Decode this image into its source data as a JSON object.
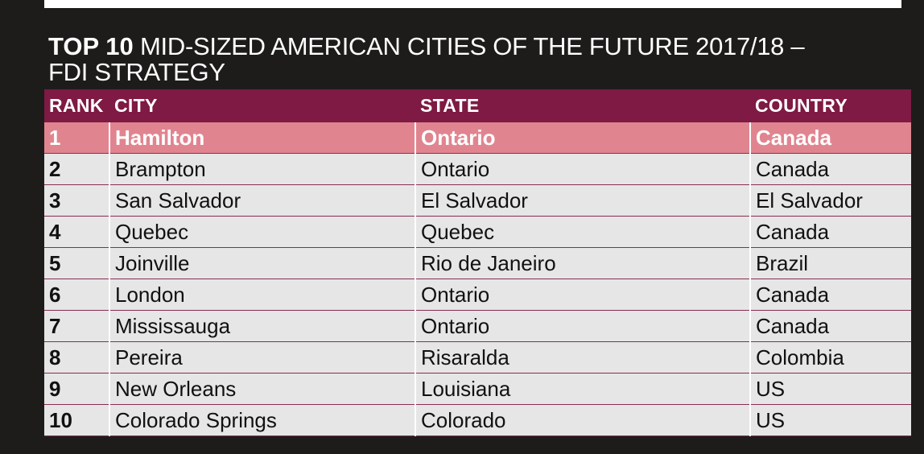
{
  "title": {
    "strong": "TOP 10",
    "rest": " MID-SIZED AMERICAN CITIES OF THE FUTURE 2017/18 –",
    "line2": "FDI STRATEGY"
  },
  "table": {
    "headers": {
      "rank": "RANK",
      "city": "CITY",
      "state": "STATE",
      "country": "COUNTRY"
    },
    "rows": [
      {
        "rank": "1",
        "city": "Hamilton",
        "state": "Ontario",
        "country": "Canada"
      },
      {
        "rank": "2",
        "city": "Brampton",
        "state": "Ontario",
        "country": "Canada"
      },
      {
        "rank": "3",
        "city": "San Salvador",
        "state": "El Salvador",
        "country": "El Salvador"
      },
      {
        "rank": "4",
        "city": "Quebec",
        "state": "Quebec",
        "country": "Canada"
      },
      {
        "rank": "5",
        "city": "Joinville",
        "state": "Rio de Janeiro",
        "country": "Brazil"
      },
      {
        "rank": "6",
        "city": "London",
        "state": "Ontario",
        "country": "Canada"
      },
      {
        "rank": "7",
        "city": "Mississauga",
        "state": "Ontario",
        "country": "Canada"
      },
      {
        "rank": "8",
        "city": "Pereira",
        "state": "Risaralda",
        "country": "Colombia"
      },
      {
        "rank": "9",
        "city": "New Orleans",
        "state": "Louisiana",
        "country": "US"
      },
      {
        "rank": "10",
        "city": "Colorado Springs",
        "state": "Colorado",
        "country": "US"
      }
    ]
  },
  "colors": {
    "header_bg": "#7e1a43",
    "highlight_row": "#e08590",
    "row_bg": "#e6e6e6",
    "page_bg": "#1d1c1a"
  }
}
